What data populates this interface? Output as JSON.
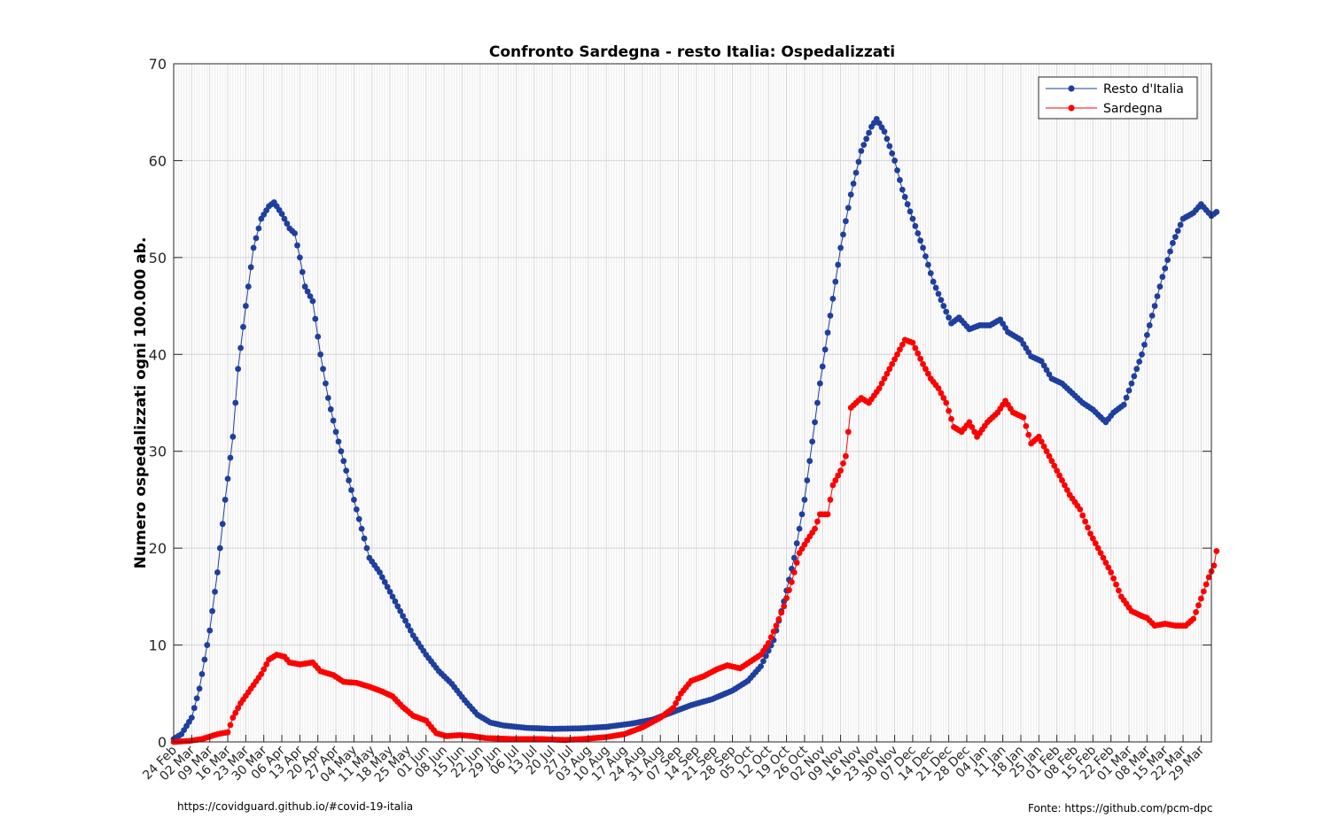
{
  "footer": {
    "source_link": "https://covidguard.github.io/#covid-19-italia",
    "source_credit": "Fonte: https://github.com/pcm-dpc"
  },
  "chart_data": {
    "type": "line",
    "title": "Confronto Sardegna - resto Italia: Ospedalizzati",
    "xlabel": "",
    "ylabel": "Numero ospedalizzati ogni 100.000 ab.",
    "ylim": [
      0,
      70
    ],
    "yticks": [
      0,
      10,
      20,
      30,
      40,
      50,
      60,
      70
    ],
    "grid": true,
    "legend_position": "top-right",
    "start_date": "2020-02-24",
    "day_count": 403,
    "x_tick_labels": [
      "24 Feb",
      "02 Mar",
      "09 Mar",
      "16 Mar",
      "23 Mar",
      "30 Mar",
      "06 Apr",
      "13 Apr",
      "20 Apr",
      "27 Apr",
      "04 May",
      "11 May",
      "18 May",
      "25 May",
      "01 Jun",
      "08 Jun",
      "15 Jun",
      "22 Jun",
      "29 Jun",
      "06 Jul",
      "13 Jul",
      "20 Jul",
      "27 Jul",
      "03 Aug",
      "10 Aug",
      "17 Aug",
      "24 Aug",
      "31 Aug",
      "07 Sep",
      "14 Sep",
      "21 Sep",
      "28 Sep",
      "05 Oct",
      "12 Oct",
      "19 Oct",
      "26 Oct",
      "02 Nov",
      "09 Nov",
      "16 Nov",
      "23 Nov",
      "30 Nov",
      "07 Dec",
      "14 Dec",
      "21 Dec",
      "28 Dec",
      "04 Jan",
      "11 Jan",
      "18 Jan",
      "25 Jan",
      "01 Feb",
      "08 Feb",
      "15 Feb",
      "22 Feb",
      "01 Mar",
      "08 Mar",
      "15 Mar",
      "22 Mar",
      "29 Mar"
    ],
    "series": [
      {
        "name": "Resto d'Italia",
        "color": "#1f3f9f",
        "points": [
          [
            "2020-02-24",
            0.3
          ],
          [
            "2020-02-27",
            0.8
          ],
          [
            "2020-03-02",
            2.5
          ],
          [
            "2020-03-05",
            5.5
          ],
          [
            "2020-03-09",
            11.5
          ],
          [
            "2020-03-12",
            17.5
          ],
          [
            "2020-03-15",
            25.0
          ],
          [
            "2020-03-18",
            31.5
          ],
          [
            "2020-03-20",
            38.5
          ],
          [
            "2020-03-23",
            45.0
          ],
          [
            "2020-03-26",
            51.0
          ],
          [
            "2020-03-29",
            54.0
          ],
          [
            "2020-04-01",
            55.3
          ],
          [
            "2020-04-03",
            55.7
          ],
          [
            "2020-04-06",
            54.5
          ],
          [
            "2020-04-09",
            53.0
          ],
          [
            "2020-04-11",
            52.5
          ],
          [
            "2020-04-13",
            50.0
          ],
          [
            "2020-04-15",
            47.0
          ],
          [
            "2020-04-18",
            45.5
          ],
          [
            "2020-04-21",
            40.0
          ],
          [
            "2020-04-24",
            35.5
          ],
          [
            "2020-04-27",
            32.0
          ],
          [
            "2020-04-30",
            29.0
          ],
          [
            "2020-05-04",
            25.0
          ],
          [
            "2020-05-07",
            22.0
          ],
          [
            "2020-05-10",
            19.0
          ],
          [
            "2020-05-14",
            17.5
          ],
          [
            "2020-05-18",
            15.5
          ],
          [
            "2020-05-22",
            13.5
          ],
          [
            "2020-05-27",
            11.0
          ],
          [
            "2020-06-01",
            9.0
          ],
          [
            "2020-06-06",
            7.3
          ],
          [
            "2020-06-11",
            6.0
          ],
          [
            "2020-06-16",
            4.3
          ],
          [
            "2020-06-21",
            2.8
          ],
          [
            "2020-06-26",
            2.0
          ],
          [
            "2020-07-01",
            1.7
          ],
          [
            "2020-07-10",
            1.45
          ],
          [
            "2020-07-20",
            1.35
          ],
          [
            "2020-07-31",
            1.4
          ],
          [
            "2020-08-10",
            1.55
          ],
          [
            "2020-08-20",
            1.9
          ],
          [
            "2020-08-28",
            2.3
          ],
          [
            "2020-09-05",
            3.1
          ],
          [
            "2020-09-12",
            3.8
          ],
          [
            "2020-09-20",
            4.4
          ],
          [
            "2020-09-28",
            5.3
          ],
          [
            "2020-10-04",
            6.3
          ],
          [
            "2020-10-09",
            7.8
          ],
          [
            "2020-10-14",
            10.5
          ],
          [
            "2020-10-18",
            14.5
          ],
          [
            "2020-10-22",
            19.0
          ],
          [
            "2020-10-26",
            25.0
          ],
          [
            "2020-10-29",
            31.0
          ],
          [
            "2020-11-01",
            37.0
          ],
          [
            "2020-11-05",
            44.0
          ],
          [
            "2020-11-09",
            51.0
          ],
          [
            "2020-11-13",
            56.5
          ],
          [
            "2020-11-17",
            61.0
          ],
          [
            "2020-11-21",
            63.5
          ],
          [
            "2020-11-23",
            64.3
          ],
          [
            "2020-11-26",
            63.0
          ],
          [
            "2020-11-30",
            60.0
          ],
          [
            "2020-12-03",
            57.0
          ],
          [
            "2020-12-07",
            54.0
          ],
          [
            "2020-12-11",
            51.0
          ],
          [
            "2020-12-15",
            47.5
          ],
          [
            "2020-12-19",
            45.0
          ],
          [
            "2020-12-22",
            43.2
          ],
          [
            "2020-12-25",
            43.8
          ],
          [
            "2020-12-29",
            42.6
          ],
          [
            "2021-01-02",
            43.0
          ],
          [
            "2021-01-06",
            43.0
          ],
          [
            "2021-01-10",
            43.6
          ],
          [
            "2021-01-13",
            42.3
          ],
          [
            "2021-01-18",
            41.5
          ],
          [
            "2021-01-22",
            39.8
          ],
          [
            "2021-01-26",
            39.3
          ],
          [
            "2021-01-30",
            37.5
          ],
          [
            "2021-02-03",
            37.0
          ],
          [
            "2021-02-07",
            36.0
          ],
          [
            "2021-02-11",
            35.0
          ],
          [
            "2021-02-15",
            34.3
          ],
          [
            "2021-02-20",
            33.0
          ],
          [
            "2021-02-23",
            34.0
          ],
          [
            "2021-02-27",
            34.8
          ],
          [
            "2021-03-02",
            37.0
          ],
          [
            "2021-03-06",
            40.0
          ],
          [
            "2021-03-10",
            44.0
          ],
          [
            "2021-03-14",
            48.0
          ],
          [
            "2021-03-18",
            51.5
          ],
          [
            "2021-03-22",
            54.0
          ],
          [
            "2021-03-26",
            54.6
          ],
          [
            "2021-03-29",
            55.5
          ],
          [
            "2021-04-02",
            54.3
          ],
          [
            "2021-04-04",
            54.7
          ]
        ]
      },
      {
        "name": "Sardegna",
        "color": "#ff0000",
        "points": [
          [
            "2020-02-24",
            0.0
          ],
          [
            "2020-03-01",
            0.1
          ],
          [
            "2020-03-06",
            0.3
          ],
          [
            "2020-03-12",
            0.8
          ],
          [
            "2020-03-16",
            1.0
          ],
          [
            "2020-03-18",
            2.5
          ],
          [
            "2020-03-21",
            4.0
          ],
          [
            "2020-03-25",
            5.5
          ],
          [
            "2020-03-29",
            7.0
          ],
          [
            "2020-04-01",
            8.5
          ],
          [
            "2020-04-04",
            9.0
          ],
          [
            "2020-04-07",
            8.8
          ],
          [
            "2020-04-09",
            8.2
          ],
          [
            "2020-04-13",
            8.0
          ],
          [
            "2020-04-18",
            8.2
          ],
          [
            "2020-04-21",
            7.3
          ],
          [
            "2020-04-26",
            6.9
          ],
          [
            "2020-04-30",
            6.2
          ],
          [
            "2020-05-05",
            6.1
          ],
          [
            "2020-05-10",
            5.7
          ],
          [
            "2020-05-15",
            5.2
          ],
          [
            "2020-05-19",
            4.7
          ],
          [
            "2020-05-23",
            3.6
          ],
          [
            "2020-05-27",
            2.7
          ],
          [
            "2020-06-01",
            2.2
          ],
          [
            "2020-06-05",
            0.9
          ],
          [
            "2020-06-09",
            0.6
          ],
          [
            "2020-06-14",
            0.7
          ],
          [
            "2020-06-19",
            0.6
          ],
          [
            "2020-06-24",
            0.4
          ],
          [
            "2020-07-04",
            0.3
          ],
          [
            "2020-07-15",
            0.3
          ],
          [
            "2020-07-25",
            0.2
          ],
          [
            "2020-08-01",
            0.3
          ],
          [
            "2020-08-10",
            0.5
          ],
          [
            "2020-08-17",
            0.8
          ],
          [
            "2020-08-24",
            1.5
          ],
          [
            "2020-08-31",
            2.5
          ],
          [
            "2020-09-05",
            3.5
          ],
          [
            "2020-09-08",
            5.0
          ],
          [
            "2020-09-12",
            6.3
          ],
          [
            "2020-09-17",
            6.8
          ],
          [
            "2020-09-22",
            7.5
          ],
          [
            "2020-09-26",
            7.9
          ],
          [
            "2020-10-01",
            7.6
          ],
          [
            "2020-10-05",
            8.3
          ],
          [
            "2020-10-09",
            9.0
          ],
          [
            "2020-10-12",
            10.2
          ],
          [
            "2020-10-15",
            12.0
          ],
          [
            "2020-10-18",
            14.0
          ],
          [
            "2020-10-21",
            16.5
          ],
          [
            "2020-10-24",
            19.5
          ],
          [
            "2020-10-27",
            20.8
          ],
          [
            "2020-10-30",
            22.0
          ],
          [
            "2020-11-01",
            23.5
          ],
          [
            "2020-11-04",
            23.5
          ],
          [
            "2020-11-06",
            26.5
          ],
          [
            "2020-11-09",
            28.0
          ],
          [
            "2020-11-11",
            29.5
          ],
          [
            "2020-11-13",
            34.5
          ],
          [
            "2020-11-17",
            35.5
          ],
          [
            "2020-11-20",
            35.0
          ],
          [
            "2020-11-24",
            36.5
          ],
          [
            "2020-11-27",
            38.0
          ],
          [
            "2020-12-01",
            40.0
          ],
          [
            "2020-12-04",
            41.5
          ],
          [
            "2020-12-07",
            41.2
          ],
          [
            "2020-12-11",
            39.0
          ],
          [
            "2020-12-14",
            37.5
          ],
          [
            "2020-12-17",
            36.5
          ],
          [
            "2020-12-20",
            35.0
          ],
          [
            "2020-12-23",
            32.5
          ],
          [
            "2020-12-26",
            32.0
          ],
          [
            "2020-12-29",
            33.0
          ],
          [
            "2021-01-01",
            31.5
          ],
          [
            "2021-01-05",
            33.0
          ],
          [
            "2021-01-09",
            34.0
          ],
          [
            "2021-01-12",
            35.2
          ],
          [
            "2021-01-15",
            34.0
          ],
          [
            "2021-01-19",
            33.5
          ],
          [
            "2021-01-22",
            30.8
          ],
          [
            "2021-01-25",
            31.5
          ],
          [
            "2021-01-29",
            29.5
          ],
          [
            "2021-02-02",
            27.5
          ],
          [
            "2021-02-06",
            25.5
          ],
          [
            "2021-02-10",
            24.0
          ],
          [
            "2021-02-14",
            21.5
          ],
          [
            "2021-02-18",
            19.5
          ],
          [
            "2021-02-22",
            17.5
          ],
          [
            "2021-02-26",
            15.0
          ],
          [
            "2021-03-02",
            13.5
          ],
          [
            "2021-03-06",
            13.0
          ],
          [
            "2021-03-08",
            12.8
          ],
          [
            "2021-03-11",
            12.0
          ],
          [
            "2021-03-15",
            12.2
          ],
          [
            "2021-03-19",
            12.0
          ],
          [
            "2021-03-23",
            12.0
          ],
          [
            "2021-03-26",
            12.7
          ],
          [
            "2021-03-29",
            14.8
          ],
          [
            "2021-04-01",
            17.0
          ],
          [
            "2021-04-03",
            18.2
          ],
          [
            "2021-04-04",
            19.7
          ]
        ]
      }
    ]
  }
}
